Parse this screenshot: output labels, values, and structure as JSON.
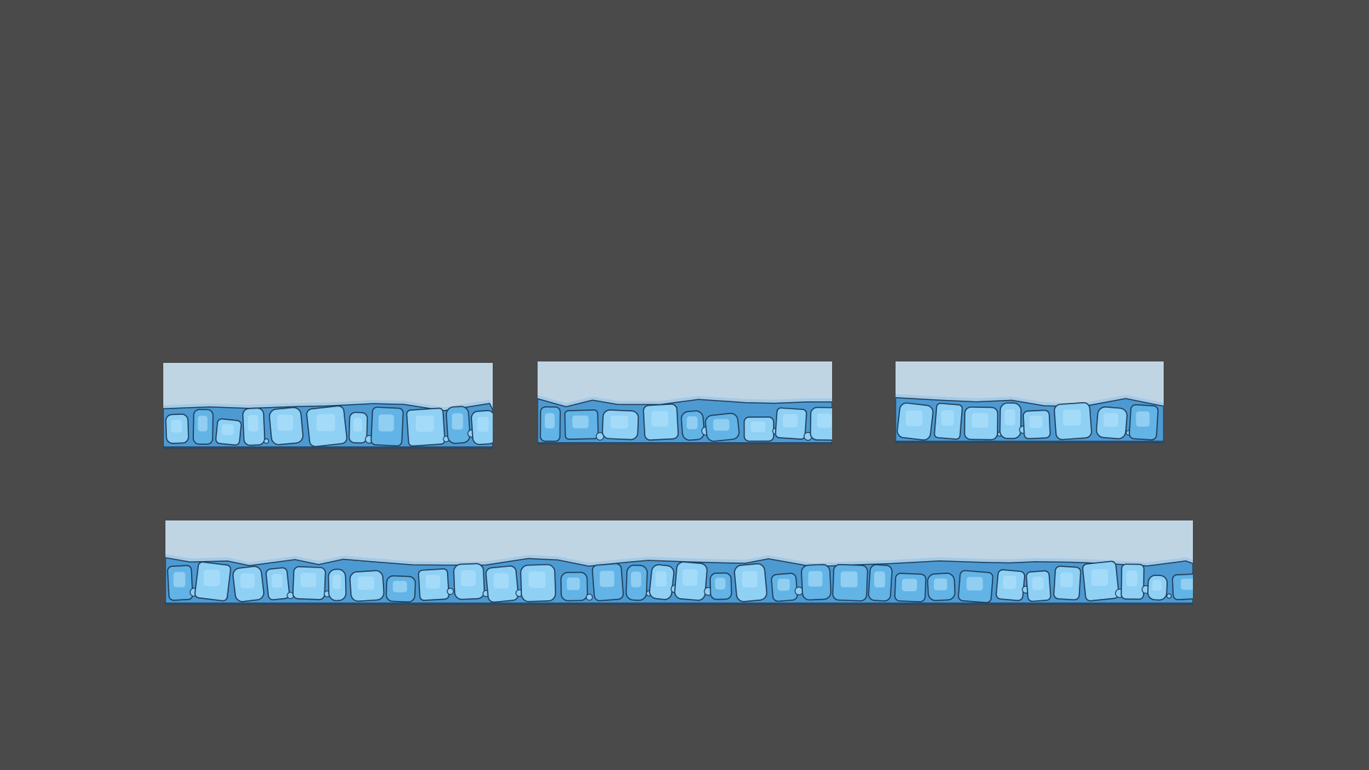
{
  "scene": {
    "background_color": "#4a4a4a",
    "tile_type": "ice-rock ground strip",
    "colors": {
      "sky": "#c0d5e4",
      "glow": "#8fc3e8",
      "ground": "#4d9ad2",
      "rock_light": "#8fd0f5",
      "rock_mid": "#62b3e6",
      "outline": "#1f3f5c"
    },
    "tiles": [
      {
        "id": "tile-1",
        "seed": 3
      },
      {
        "id": "tile-2",
        "seed": 11
      },
      {
        "id": "tile-3",
        "seed": 23
      },
      {
        "id": "tile-4",
        "seed": 41
      }
    ]
  }
}
